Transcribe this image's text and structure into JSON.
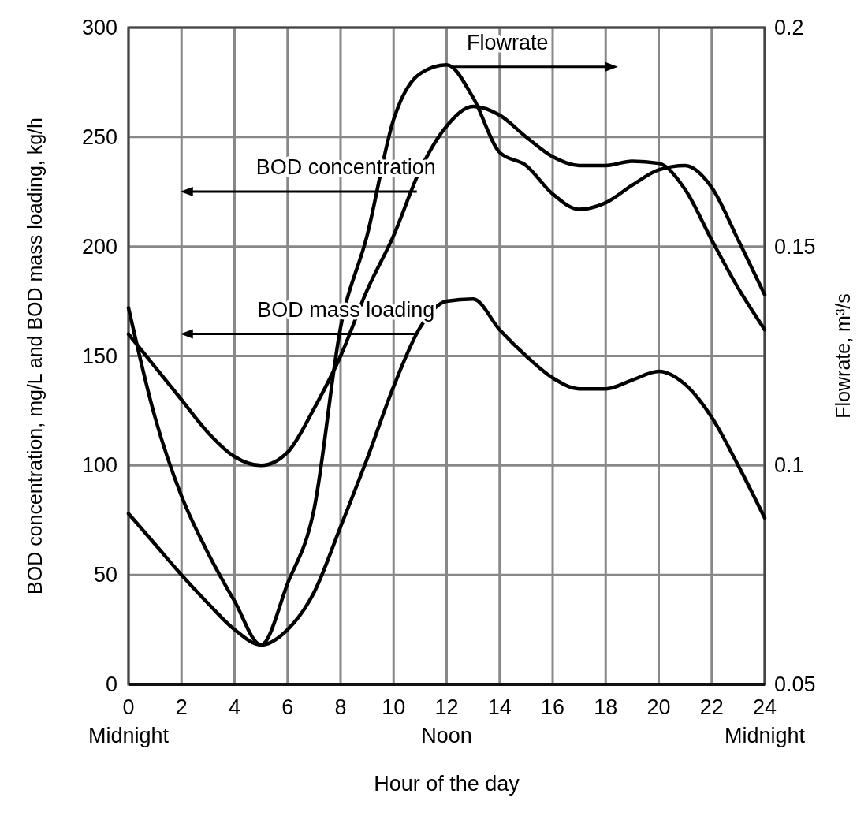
{
  "chart_data": {
    "type": "line",
    "xlabel": "Hour of the day",
    "ylabel": "BOD concentration, mg/L and BOD mass loading, kg/h",
    "y2label": "Flowrate, m³/s",
    "x": [
      0,
      1,
      2,
      3,
      4,
      5,
      6,
      7,
      8,
      9,
      10,
      11,
      12,
      13,
      14,
      15,
      16,
      17,
      18,
      19,
      20,
      21,
      22,
      23,
      24
    ],
    "series": [
      {
        "name": "Flowrate",
        "color": "#000000",
        "axis": "y2",
        "values": [
          0.136,
          0.111,
          0.093,
          0.08,
          0.069,
          0.059,
          0.073,
          0.09,
          0.1315,
          0.1525,
          0.179,
          0.1895,
          0.1915,
          0.184,
          0.1715,
          0.1685,
          0.162,
          0.1585,
          0.16,
          0.164,
          0.1675,
          0.1685,
          0.1635,
          0.1515,
          0.139
        ]
      },
      {
        "name": "BOD concentration",
        "color": "#000000",
        "values": [
          160,
          145,
          130,
          115,
          104,
          100,
          106,
          126,
          150,
          180,
          205,
          235,
          255,
          264,
          260,
          250,
          241,
          237,
          237,
          239,
          238,
          226,
          203,
          181,
          162
        ]
      },
      {
        "name": "BOD mass loading",
        "color": "#000000",
        "values": [
          78,
          64,
          50,
          37,
          25,
          18,
          25,
          42,
          72,
          103,
          136,
          163,
          175,
          176,
          162,
          150,
          140,
          135,
          135,
          139,
          143,
          137,
          122,
          100,
          76
        ]
      }
    ],
    "xlim": [
      0,
      24
    ],
    "xticks": [
      {
        "value": 0,
        "label": "0\nMidnight"
      },
      2,
      4,
      6,
      8,
      10,
      {
        "value": 12,
        "label": "12\nNoon"
      },
      14,
      16,
      18,
      20,
      22,
      {
        "value": 24,
        "label": "24\nMidnight"
      }
    ],
    "ylim": [
      0,
      300
    ],
    "yticks": [
      0,
      50,
      100,
      150,
      200,
      250,
      300
    ],
    "y2lim": [
      0.05,
      0.2
    ],
    "y2ticks": [
      0.05,
      0.1,
      0.15,
      0.2
    ],
    "grid": true,
    "line_style": "solid",
    "marker": "none"
  }
}
